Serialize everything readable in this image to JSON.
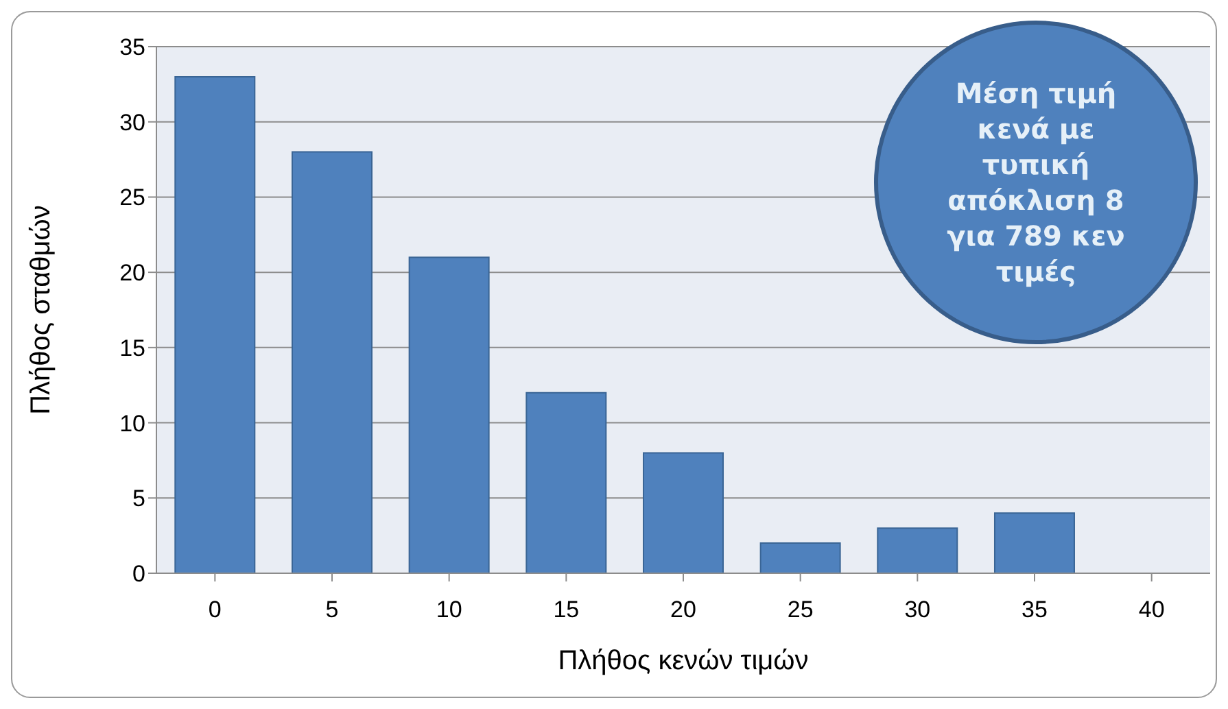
{
  "chart_data": {
    "type": "bar",
    "xlabel": "Πλήθος κενών τιμών",
    "ylabel": "Πλήθος σταθμών",
    "categories": [
      "0",
      "5",
      "10",
      "15",
      "20",
      "25",
      "30",
      "35",
      "40"
    ],
    "values": [
      33,
      28,
      21,
      12,
      8,
      2,
      3,
      4,
      0
    ],
    "color": "#4f81bd",
    "ylim": [
      0,
      35
    ],
    "yticks": [
      0,
      5,
      10,
      15,
      20,
      25,
      30,
      35
    ],
    "grid": "y",
    "annotations": [
      "Μέση τιμή κενά με τυπική απόκλιση 8 για 789 κεν τιμές"
    ]
  }
}
